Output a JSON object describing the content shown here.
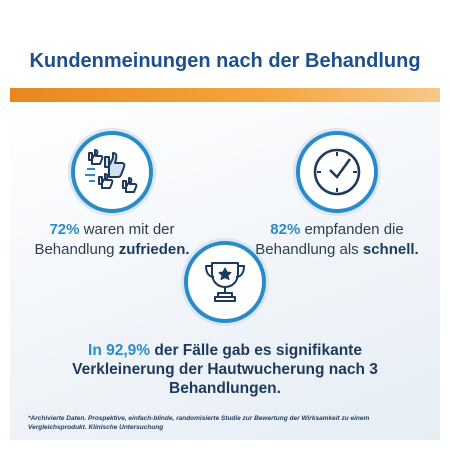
{
  "title": "Kundenmeinungen nach der Behandlung",
  "stats": [
    {
      "highlight": "72%",
      "text": " waren mit der Behandlung ",
      "emphasis": "zufrieden."
    },
    {
      "highlight": "82%",
      "text": " empfanden die Behandlung als ",
      "emphasis": "schnell."
    },
    {
      "highlight": "In 92,9%",
      "text": " der Fälle gab es ",
      "emphasis": "signifikante Verkleinerung der Hautwucherung",
      "tail": " nach 3 Behandlungen."
    }
  ],
  "footnote": "*Archivierte Daten. Prospektive, einfach-blinde, randomisierte Studie zur Bewertung der Wirksamkeit zu einem Vergleichsprodukt. Klinische Untersuchung"
}
